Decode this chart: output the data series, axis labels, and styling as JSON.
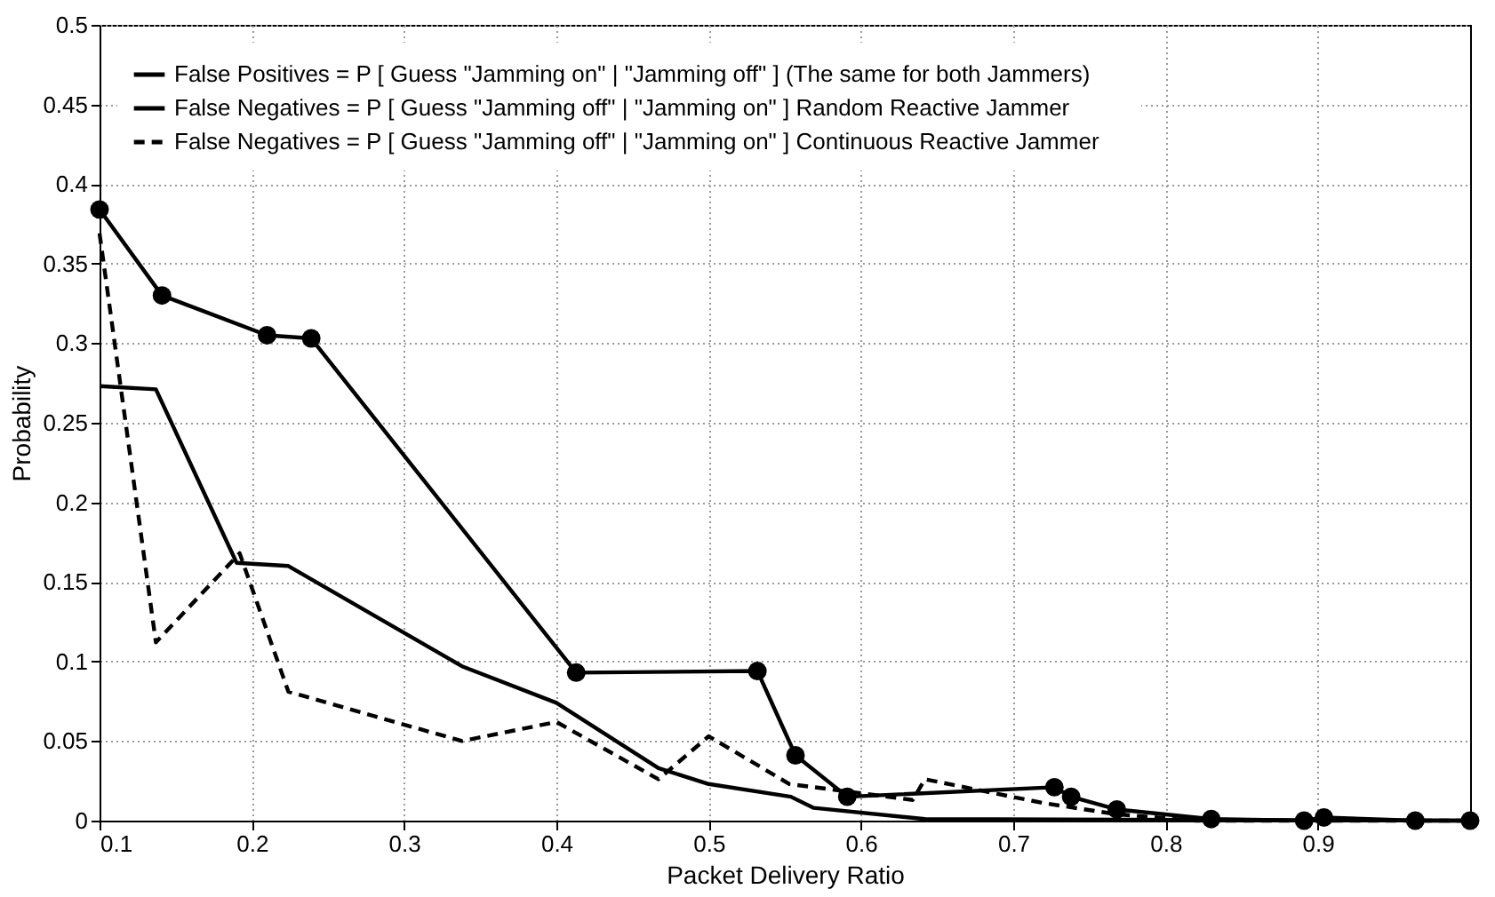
{
  "chart_data": {
    "type": "line",
    "xlabel": "Packet Delivery Ratio",
    "ylabel": "Probability",
    "xlim": [
      0.1,
      1.0
    ],
    "xticks": [
      0.1,
      0.2,
      0.3,
      0.4,
      0.5,
      0.6,
      0.7,
      0.8,
      0.9
    ],
    "ylim": [
      0,
      0.5
    ],
    "yticks": [
      0,
      0.05,
      0.1,
      0.15,
      0.2,
      0.25,
      0.3,
      0.35,
      0.4,
      0.45,
      0.5
    ],
    "grid": true,
    "legend": "top",
    "series": [
      {
        "name": "False Positives  = P [ Guess \"Jamming on\" | \"Jamming off\" ]     (The same for both Jammers)",
        "color": "#000000",
        "line_style": "solid",
        "marker": "none",
        "x": [
          0.1,
          0.137,
          0.19,
          0.224,
          0.338,
          0.4,
          0.467,
          0.5,
          0.554,
          0.569,
          0.642,
          1.0
        ],
        "values": [
          0.273,
          0.271,
          0.162,
          0.16,
          0.097,
          0.074,
          0.033,
          0.023,
          0.015,
          0.008,
          0.001,
          0.0
        ]
      },
      {
        "name": "False Negatives = P [ Guess \"Jamming off\" | \"Jamming on\" ]     Random Reactive Jammer",
        "color": "#000000",
        "line_style": "solid",
        "marker": "circle",
        "x": [
          0.1,
          0.141,
          0.21,
          0.239,
          0.413,
          0.532,
          0.557,
          0.591,
          0.727,
          0.738,
          0.768,
          0.83,
          0.891,
          0.904,
          0.964,
          1.0
        ],
        "values": [
          0.384,
          0.33,
          0.305,
          0.303,
          0.093,
          0.094,
          0.041,
          0.015,
          0.021,
          0.015,
          0.007,
          0.001,
          0.0,
          0.002,
          0.0,
          0.0
        ]
      },
      {
        "name": "False Negatives = P [ Guess \"Jamming off\" | \"Jamming on\" ]     Continuous Reactive Jammer",
        "color": "#000000",
        "line_style": "dashed",
        "marker": "none",
        "x": [
          0.1,
          0.137,
          0.192,
          0.224,
          0.338,
          0.4,
          0.467,
          0.5,
          0.553,
          0.634,
          0.642,
          0.72,
          0.768,
          0.82,
          1.0
        ],
        "values": [
          0.369,
          0.112,
          0.168,
          0.081,
          0.05,
          0.062,
          0.026,
          0.053,
          0.023,
          0.013,
          0.026,
          0.011,
          0.004,
          0.0,
          0.0
        ]
      }
    ]
  }
}
